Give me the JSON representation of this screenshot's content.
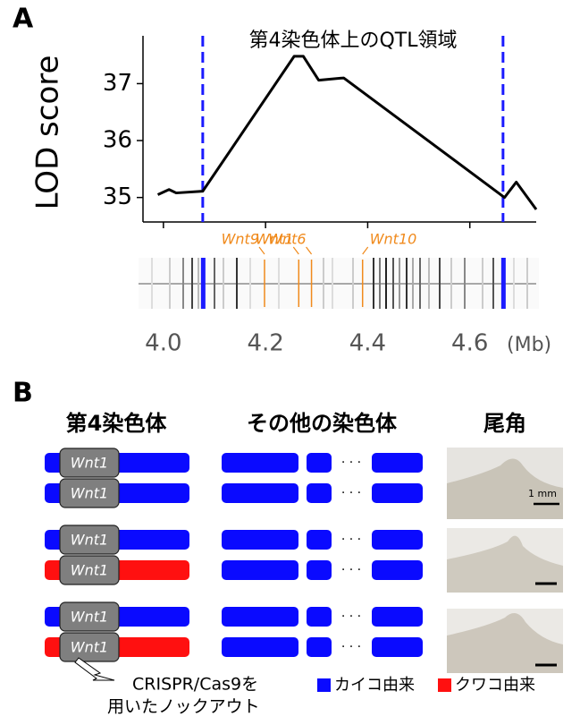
{
  "panel_labels": [
    "A",
    "B"
  ],
  "chart_data": {
    "type": "line",
    "title": "第4染色体上のQTL領域",
    "y_label": "LOD score",
    "x_unit": "(Mb)",
    "x": [
      3.989,
      4.011,
      4.025,
      4.077,
      4.256,
      4.274,
      4.304,
      4.353,
      4.668,
      4.691,
      4.73
    ],
    "series": [
      {
        "color": "#000000",
        "values": [
          35.05,
          35.14,
          35.08,
          35.11,
          37.48,
          37.48,
          37.06,
          37.1,
          35.0,
          35.27,
          34.79
        ]
      }
    ],
    "xlim": [
      3.96,
      4.73
    ],
    "ylim": [
      34.57,
      37.84
    ],
    "xticks": [
      {
        "value": 4.0,
        "label": "4.0"
      },
      4.2,
      4.4,
      4.6
    ],
    "yticks": [
      35,
      36,
      37
    ],
    "qtl_bounds": [
      4.077,
      4.665
    ],
    "qtl_color": "#1a1aff",
    "gene_color": "#f08a1c",
    "genes": [
      {
        "name": "Wnt9",
        "x": 4.198
      },
      {
        "name": "Wnt1",
        "x": 4.265
      },
      {
        "name": "Wnt6",
        "x": 4.29
      },
      {
        "name": "Wnt10",
        "x": 4.39
      }
    ]
  },
  "panel_b": {
    "headers": [
      "第4染色体",
      "その他の染色体",
      "尾角"
    ],
    "gene": "Wnt1",
    "ellipsis": "· · ·",
    "rows": [
      {
        "color": "#0a0aff"
      },
      {
        "color": "#0a0aff"
      },
      {
        "color": "#0a0aff"
      },
      {
        "color": "#ff1010"
      },
      {
        "color": "#0a0aff"
      },
      {
        "color": "#ff1010"
      }
    ],
    "other_color": "#0a0aff",
    "scale_bar": "1 mm",
    "knockout_note": [
      "CRISPR/Cas9を",
      "用いたノックアウト"
    ],
    "legend": [
      {
        "name": "カイコ由来",
        "color": "#0a0aff"
      },
      {
        "name": "クワコ由来",
        "color": "#ff1010"
      }
    ]
  }
}
